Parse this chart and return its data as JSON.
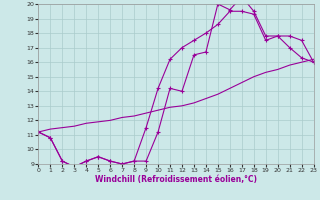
{
  "xlabel": "Windchill (Refroidissement éolien,°C)",
  "xlim": [
    0,
    23
  ],
  "ylim": [
    9,
    20
  ],
  "xticks": [
    0,
    1,
    2,
    3,
    4,
    5,
    6,
    7,
    8,
    9,
    10,
    11,
    12,
    13,
    14,
    15,
    16,
    17,
    18,
    19,
    20,
    21,
    22,
    23
  ],
  "yticks": [
    9,
    10,
    11,
    12,
    13,
    14,
    15,
    16,
    17,
    18,
    19,
    20
  ],
  "line_color": "#990099",
  "bg_color": "#cce8e8",
  "grid_color": "#aacccc",
  "line1_x": [
    0,
    1,
    2,
    3,
    4,
    5,
    6,
    7,
    8,
    9,
    10,
    11,
    12,
    13,
    14,
    15,
    16,
    17,
    18,
    19,
    20,
    21,
    22,
    23
  ],
  "line1_y": [
    11.2,
    10.8,
    9.2,
    8.8,
    9.2,
    9.5,
    9.2,
    9.0,
    9.2,
    9.2,
    11.2,
    14.2,
    14.0,
    16.5,
    16.7,
    20.0,
    19.6,
    20.5,
    19.5,
    17.8,
    17.8,
    17.0,
    16.3,
    16.0
  ],
  "line2_x": [
    0,
    1,
    2,
    3,
    4,
    5,
    6,
    7,
    8,
    9,
    10,
    11,
    12,
    13,
    14,
    15,
    16,
    17,
    18,
    19,
    20,
    21,
    22,
    23
  ],
  "line2_y": [
    11.2,
    11.4,
    11.5,
    11.6,
    11.8,
    11.9,
    12.0,
    12.2,
    12.3,
    12.5,
    12.7,
    12.9,
    13.0,
    13.2,
    13.5,
    13.8,
    14.2,
    14.6,
    15.0,
    15.3,
    15.5,
    15.8,
    16.0,
    16.2
  ],
  "line3_x": [
    0,
    1,
    2,
    3,
    4,
    5,
    6,
    7,
    8,
    9,
    10,
    11,
    12,
    13,
    14,
    15,
    16,
    17,
    18,
    19,
    20,
    21,
    22,
    23
  ],
  "line3_y": [
    11.2,
    10.8,
    9.2,
    8.8,
    9.2,
    9.5,
    9.2,
    9.0,
    9.2,
    11.5,
    14.2,
    16.2,
    17.0,
    17.5,
    18.0,
    18.6,
    19.5,
    19.5,
    19.3,
    17.5,
    17.8,
    17.8,
    17.5,
    16.0
  ]
}
